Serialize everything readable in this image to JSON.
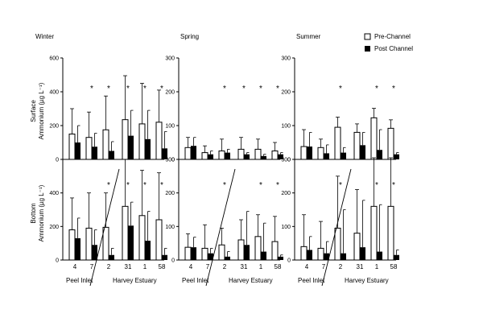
{
  "legend": {
    "pre_label": "Pre-Channel",
    "post_label": "Post Channel",
    "position": "top-right"
  },
  "y_axis_label_line1": "Surface",
  "y_axis_label_line2": "Ammonium (µg L⁻¹)",
  "y_axis_label_bottom_line1": "Bottom",
  "y_axis_label_bottom_line2": "Ammonium (µg L⁻¹)",
  "x_group_left": "Peel Inlet",
  "x_group_right": "Harvey Estuary",
  "chart_data": [
    {
      "type": "bar",
      "panel": "surface-winter",
      "season": "Winter",
      "depth": "Surface",
      "categories": [
        "4",
        "7",
        "2",
        "31",
        "1",
        "58"
      ],
      "ylim": [
        0,
        600
      ],
      "yticks": [
        0,
        200,
        400,
        600
      ],
      "series": [
        {
          "name": "Pre-Channel",
          "values": [
            150,
            130,
            175,
            235,
            210,
            220
          ],
          "errors": [
            150,
            150,
            200,
            260,
            240,
            190
          ]
        },
        {
          "name": "Post Channel",
          "values": [
            100,
            75,
            50,
            140,
            120,
            65
          ],
          "errors": [
            100,
            80,
            55,
            150,
            170,
            100
          ]
        }
      ],
      "significant": [
        false,
        true,
        true,
        true,
        true,
        true
      ]
    },
    {
      "type": "bar",
      "panel": "surface-spring",
      "season": "Spring",
      "depth": "Surface",
      "categories": [
        "4",
        "7",
        "2",
        "31",
        "1",
        "58"
      ],
      "ylim": [
        0,
        300
      ],
      "yticks": [
        0,
        100,
        200,
        300
      ],
      "series": [
        {
          "name": "Pre-Channel",
          "values": [
            35,
            20,
            25,
            30,
            30,
            25
          ],
          "errors": [
            30,
            20,
            35,
            35,
            30,
            25
          ]
        },
        {
          "name": "Post Channel",
          "values": [
            40,
            15,
            20,
            15,
            10,
            15
          ],
          "errors": [
            25,
            10,
            10,
            5,
            5,
            5
          ]
        }
      ],
      "significant": [
        false,
        false,
        true,
        true,
        true,
        true
      ]
    },
    {
      "type": "bar",
      "panel": "surface-summer",
      "season": "Summer",
      "depth": "Surface",
      "categories": [
        "4",
        "7",
        "2",
        "31",
        "1",
        "58"
      ],
      "ylim": [
        0,
        300
      ],
      "yticks": [
        0,
        100,
        200,
        300
      ],
      "series": [
        {
          "name": "Pre-Channel",
          "values": [
            38,
            35,
            95,
            80,
            123,
            92
          ],
          "errors": [
            50,
            25,
            30,
            25,
            28,
            25
          ]
        },
        {
          "name": "Post Channel",
          "values": [
            38,
            18,
            20,
            42,
            28,
            15
          ],
          "errors": [
            42,
            25,
            15,
            38,
            60,
            5
          ]
        }
      ],
      "significant": [
        false,
        false,
        true,
        false,
        true,
        true
      ]
    },
    {
      "type": "bar",
      "panel": "bottom-winter",
      "season": "Winter",
      "depth": "Bottom",
      "categories": [
        "4",
        "7",
        "2",
        "31",
        "1",
        "58"
      ],
      "ylim": [
        0,
        600
      ],
      "yticks": [
        0,
        200,
        400
      ],
      "series": [
        {
          "name": "Pre-Channel",
          "values": [
            180,
            190,
            195,
            320,
            265,
            240
          ],
          "errors": [
            190,
            210,
            205,
            280,
            270,
            280
          ]
        },
        {
          "name": "Post Channel",
          "values": [
            130,
            90,
            30,
            205,
            115,
            30
          ],
          "errors": [
            120,
            90,
            40,
            140,
            175,
            40
          ]
        }
      ],
      "significant": [
        false,
        false,
        true,
        true,
        true,
        true
      ]
    },
    {
      "type": "bar",
      "panel": "bottom-spring",
      "season": "Spring",
      "depth": "Bottom",
      "categories": [
        "4",
        "7",
        "2",
        "31",
        "1",
        "58"
      ],
      "ylim": [
        0,
        300
      ],
      "yticks": [
        0,
        100,
        200,
        300
      ],
      "series": [
        {
          "name": "Pre-Channel",
          "values": [
            38,
            35,
            45,
            60,
            70,
            55
          ],
          "errors": [
            40,
            70,
            50,
            60,
            65,
            75
          ]
        },
        {
          "name": "Post Channel",
          "values": [
            38,
            20,
            10,
            45,
            25,
            10
          ],
          "errors": [
            30,
            15,
            15,
            100,
            85,
            5
          ]
        }
      ],
      "significant": [
        false,
        false,
        true,
        false,
        true,
        true
      ]
    },
    {
      "type": "bar",
      "panel": "bottom-summer",
      "season": "Summer",
      "depth": "Bottom",
      "categories": [
        "4",
        "7",
        "2",
        "31",
        "1",
        "58"
      ],
      "ylim": [
        0,
        300
      ],
      "yticks": [
        0,
        100,
        200,
        300
      ],
      "series": [
        {
          "name": "Pre-Channel",
          "values": [
            40,
            35,
            95,
            80,
            160,
            160
          ],
          "errors": [
            95,
            80,
            155,
            130,
            150,
            160
          ]
        },
        {
          "name": "Post Channel",
          "values": [
            30,
            20,
            20,
            38,
            25,
            15
          ],
          "errors": [
            40,
            35,
            130,
            140,
            140,
            15
          ]
        }
      ],
      "significant": [
        false,
        false,
        true,
        false,
        true,
        true
      ]
    }
  ]
}
